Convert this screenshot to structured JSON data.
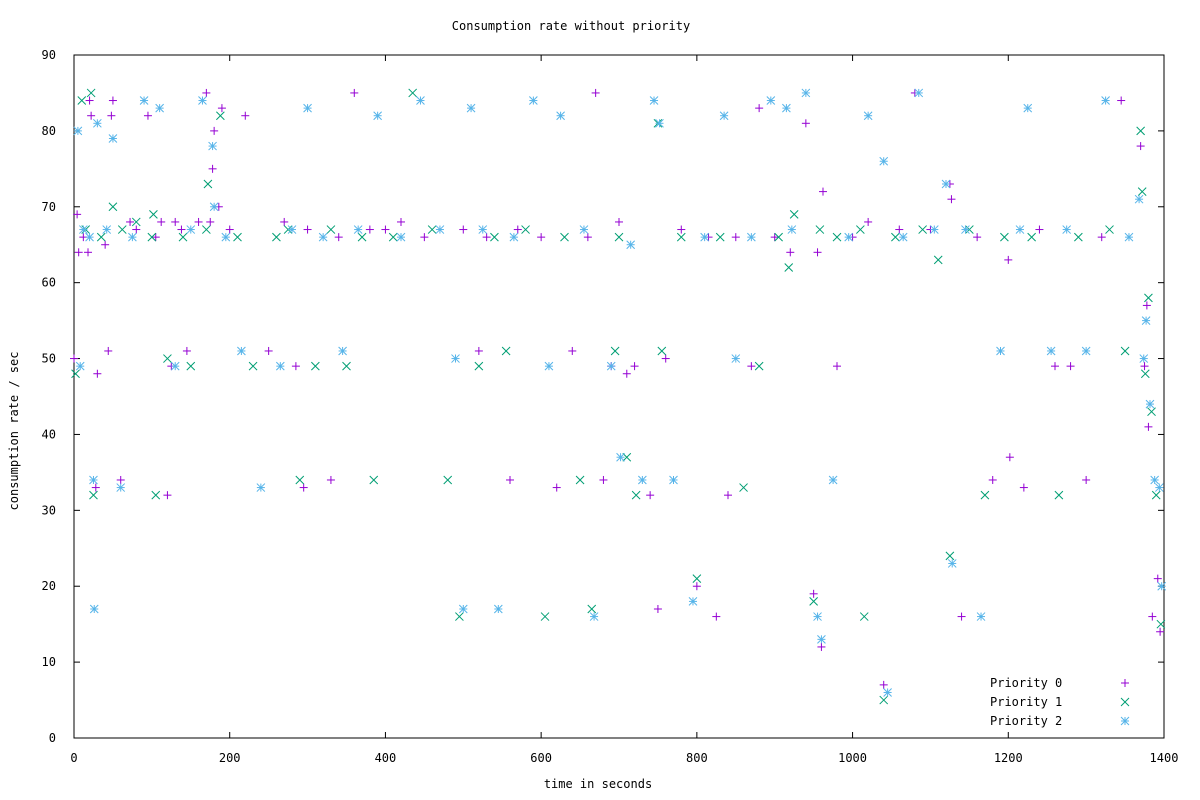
{
  "chart_data": {
    "type": "scatter",
    "title": "Consumption rate without priority",
    "xlabel": "time in seconds",
    "ylabel": "consumption rate / sec",
    "xlim": [
      0,
      1400
    ],
    "ylim": [
      0,
      90
    ],
    "xticks": [
      0,
      200,
      400,
      600,
      800,
      1000,
      1200,
      1400
    ],
    "yticks": [
      0,
      10,
      20,
      30,
      40,
      50,
      60,
      70,
      80,
      90
    ],
    "grid": false,
    "legend_position": "bottom-right",
    "series": [
      {
        "name": "Priority 0",
        "marker": "plus",
        "color": "#9400d3",
        "points": [
          [
            0,
            50
          ],
          [
            4,
            69
          ],
          [
            6,
            64
          ],
          [
            12,
            66
          ],
          [
            18,
            64
          ],
          [
            20,
            84
          ],
          [
            22,
            82
          ],
          [
            28,
            33
          ],
          [
            30,
            48
          ],
          [
            40,
            65
          ],
          [
            44,
            51
          ],
          [
            48,
            82
          ],
          [
            50,
            84
          ],
          [
            60,
            34
          ],
          [
            72,
            68
          ],
          [
            80,
            67
          ],
          [
            95,
            82
          ],
          [
            105,
            66
          ],
          [
            112,
            68
          ],
          [
            120,
            32
          ],
          [
            125,
            49
          ],
          [
            130,
            68
          ],
          [
            138,
            67
          ],
          [
            145,
            51
          ],
          [
            160,
            68
          ],
          [
            170,
            85
          ],
          [
            175,
            68
          ],
          [
            178,
            75
          ],
          [
            180,
            80
          ],
          [
            186,
            70
          ],
          [
            190,
            83
          ],
          [
            200,
            67
          ],
          [
            220,
            82
          ],
          [
            250,
            51
          ],
          [
            270,
            68
          ],
          [
            285,
            49
          ],
          [
            295,
            33
          ],
          [
            300,
            67
          ],
          [
            330,
            34
          ],
          [
            340,
            66
          ],
          [
            360,
            85
          ],
          [
            380,
            67
          ],
          [
            400,
            67
          ],
          [
            420,
            68
          ],
          [
            450,
            66
          ],
          [
            500,
            67
          ],
          [
            520,
            51
          ],
          [
            530,
            66
          ],
          [
            560,
            34
          ],
          [
            570,
            67
          ],
          [
            600,
            66
          ],
          [
            620,
            33
          ],
          [
            640,
            51
          ],
          [
            660,
            66
          ],
          [
            670,
            85
          ],
          [
            680,
            34
          ],
          [
            690,
            49
          ],
          [
            700,
            68
          ],
          [
            710,
            48
          ],
          [
            720,
            49
          ],
          [
            740,
            32
          ],
          [
            750,
            17
          ],
          [
            760,
            50
          ],
          [
            780,
            67
          ],
          [
            800,
            20
          ],
          [
            815,
            66
          ],
          [
            825,
            16
          ],
          [
            840,
            32
          ],
          [
            850,
            66
          ],
          [
            870,
            49
          ],
          [
            880,
            83
          ],
          [
            900,
            66
          ],
          [
            920,
            64
          ],
          [
            940,
            81
          ],
          [
            950,
            19
          ],
          [
            955,
            64
          ],
          [
            960,
            12
          ],
          [
            962,
            72
          ],
          [
            980,
            49
          ],
          [
            1000,
            66
          ],
          [
            1020,
            68
          ],
          [
            1040,
            7
          ],
          [
            1060,
            67
          ],
          [
            1080,
            85
          ],
          [
            1100,
            67
          ],
          [
            1125,
            73
          ],
          [
            1127,
            71
          ],
          [
            1140,
            16
          ],
          [
            1160,
            66
          ],
          [
            1180,
            34
          ],
          [
            1200,
            63
          ],
          [
            1202,
            37
          ],
          [
            1220,
            33
          ],
          [
            1240,
            67
          ],
          [
            1260,
            49
          ],
          [
            1280,
            49
          ],
          [
            1300,
            34
          ],
          [
            1320,
            66
          ],
          [
            1345,
            84
          ],
          [
            1370,
            78
          ],
          [
            1375,
            49
          ],
          [
            1378,
            57
          ],
          [
            1380,
            41
          ],
          [
            1385,
            16
          ],
          [
            1392,
            21
          ],
          [
            1395,
            14
          ]
        ]
      },
      {
        "name": "Priority 1",
        "marker": "cross",
        "color": "#009e73",
        "points": [
          [
            2,
            48
          ],
          [
            10,
            84
          ],
          [
            15,
            67
          ],
          [
            22,
            85
          ],
          [
            25,
            32
          ],
          [
            35,
            66
          ],
          [
            50,
            70
          ],
          [
            62,
            67
          ],
          [
            80,
            68
          ],
          [
            100,
            66
          ],
          [
            102,
            69
          ],
          [
            105,
            32
          ],
          [
            120,
            50
          ],
          [
            140,
            66
          ],
          [
            150,
            49
          ],
          [
            170,
            67
          ],
          [
            172,
            73
          ],
          [
            188,
            82
          ],
          [
            210,
            66
          ],
          [
            230,
            49
          ],
          [
            260,
            66
          ],
          [
            275,
            67
          ],
          [
            290,
            34
          ],
          [
            310,
            49
          ],
          [
            330,
            67
          ],
          [
            350,
            49
          ],
          [
            370,
            66
          ],
          [
            385,
            34
          ],
          [
            410,
            66
          ],
          [
            435,
            85
          ],
          [
            460,
            67
          ],
          [
            480,
            34
          ],
          [
            495,
            16
          ],
          [
            520,
            49
          ],
          [
            540,
            66
          ],
          [
            555,
            51
          ],
          [
            580,
            67
          ],
          [
            605,
            16
          ],
          [
            630,
            66
          ],
          [
            650,
            34
          ],
          [
            665,
            17
          ],
          [
            695,
            51
          ],
          [
            700,
            66
          ],
          [
            710,
            37
          ],
          [
            722,
            32
          ],
          [
            750,
            81
          ],
          [
            755,
            51
          ],
          [
            780,
            66
          ],
          [
            800,
            21
          ],
          [
            830,
            66
          ],
          [
            860,
            33
          ],
          [
            880,
            49
          ],
          [
            905,
            66
          ],
          [
            918,
            62
          ],
          [
            925,
            69
          ],
          [
            950,
            18
          ],
          [
            958,
            67
          ],
          [
            980,
            66
          ],
          [
            1010,
            67
          ],
          [
            1015,
            16
          ],
          [
            1040,
            5
          ],
          [
            1055,
            66
          ],
          [
            1090,
            67
          ],
          [
            1110,
            63
          ],
          [
            1125,
            24
          ],
          [
            1150,
            67
          ],
          [
            1170,
            32
          ],
          [
            1195,
            66
          ],
          [
            1230,
            66
          ],
          [
            1265,
            32
          ],
          [
            1290,
            66
          ],
          [
            1330,
            67
          ],
          [
            1350,
            51
          ],
          [
            1370,
            80
          ],
          [
            1372,
            72
          ],
          [
            1376,
            48
          ],
          [
            1380,
            58
          ],
          [
            1384,
            43
          ],
          [
            1390,
            32
          ],
          [
            1396,
            15
          ]
        ]
      },
      {
        "name": "Priority 2",
        "marker": "star",
        "color": "#56b4e9",
        "points": [
          [
            5,
            80
          ],
          [
            8,
            49
          ],
          [
            12,
            67
          ],
          [
            20,
            66
          ],
          [
            25,
            34
          ],
          [
            26,
            17
          ],
          [
            30,
            81
          ],
          [
            42,
            67
          ],
          [
            50,
            79
          ],
          [
            60,
            33
          ],
          [
            75,
            66
          ],
          [
            90,
            84
          ],
          [
            110,
            83
          ],
          [
            130,
            49
          ],
          [
            150,
            67
          ],
          [
            165,
            84
          ],
          [
            178,
            78
          ],
          [
            180,
            70
          ],
          [
            195,
            66
          ],
          [
            215,
            51
          ],
          [
            240,
            33
          ],
          [
            265,
            49
          ],
          [
            280,
            67
          ],
          [
            300,
            83
          ],
          [
            320,
            66
          ],
          [
            345,
            51
          ],
          [
            365,
            67
          ],
          [
            390,
            82
          ],
          [
            420,
            66
          ],
          [
            445,
            84
          ],
          [
            470,
            67
          ],
          [
            490,
            50
          ],
          [
            500,
            17
          ],
          [
            510,
            83
          ],
          [
            525,
            67
          ],
          [
            545,
            17
          ],
          [
            565,
            66
          ],
          [
            590,
            84
          ],
          [
            610,
            49
          ],
          [
            625,
            82
          ],
          [
            655,
            67
          ],
          [
            668,
            16
          ],
          [
            690,
            49
          ],
          [
            702,
            37
          ],
          [
            715,
            65
          ],
          [
            730,
            34
          ],
          [
            745,
            84
          ],
          [
            752,
            81
          ],
          [
            770,
            34
          ],
          [
            795,
            18
          ],
          [
            810,
            66
          ],
          [
            835,
            82
          ],
          [
            850,
            50
          ],
          [
            870,
            66
          ],
          [
            895,
            84
          ],
          [
            915,
            83
          ],
          [
            922,
            67
          ],
          [
            940,
            85
          ],
          [
            955,
            16
          ],
          [
            960,
            13
          ],
          [
            975,
            34
          ],
          [
            995,
            66
          ],
          [
            1020,
            82
          ],
          [
            1040,
            76
          ],
          [
            1045,
            6
          ],
          [
            1065,
            66
          ],
          [
            1085,
            85
          ],
          [
            1105,
            67
          ],
          [
            1120,
            73
          ],
          [
            1128,
            23
          ],
          [
            1145,
            67
          ],
          [
            1165,
            16
          ],
          [
            1190,
            51
          ],
          [
            1215,
            67
          ],
          [
            1225,
            83
          ],
          [
            1255,
            51
          ],
          [
            1275,
            67
          ],
          [
            1300,
            51
          ],
          [
            1325,
            84
          ],
          [
            1355,
            66
          ],
          [
            1368,
            71
          ],
          [
            1374,
            50
          ],
          [
            1377,
            55
          ],
          [
            1382,
            44
          ],
          [
            1388,
            34
          ],
          [
            1394,
            33
          ],
          [
            1397,
            20
          ]
        ]
      }
    ]
  }
}
